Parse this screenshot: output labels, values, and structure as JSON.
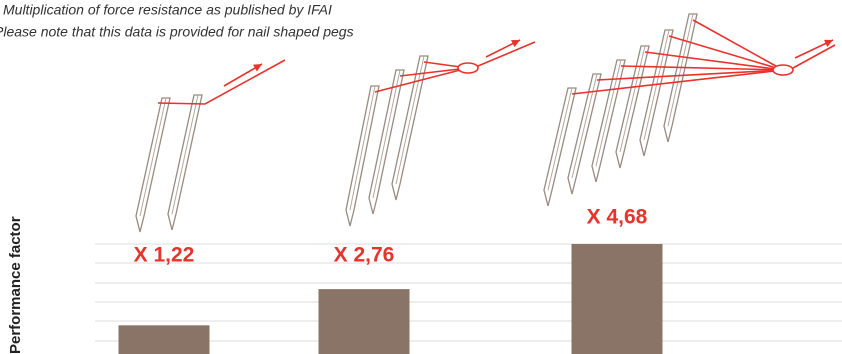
{
  "chart_data": {
    "type": "bar",
    "title": "Multiplication of force resistance as published by IFAI",
    "subtitle": "Please note that this data is provided for nail shaped pegs",
    "y_label": "Performance factor",
    "values": [
      1.22,
      2.76,
      4.68
    ],
    "value_labels": [
      "X 1,22",
      "X 2,76",
      "X 4,68"
    ],
    "color": "#8a7468",
    "ylim": [
      0,
      4.68
    ]
  }
}
